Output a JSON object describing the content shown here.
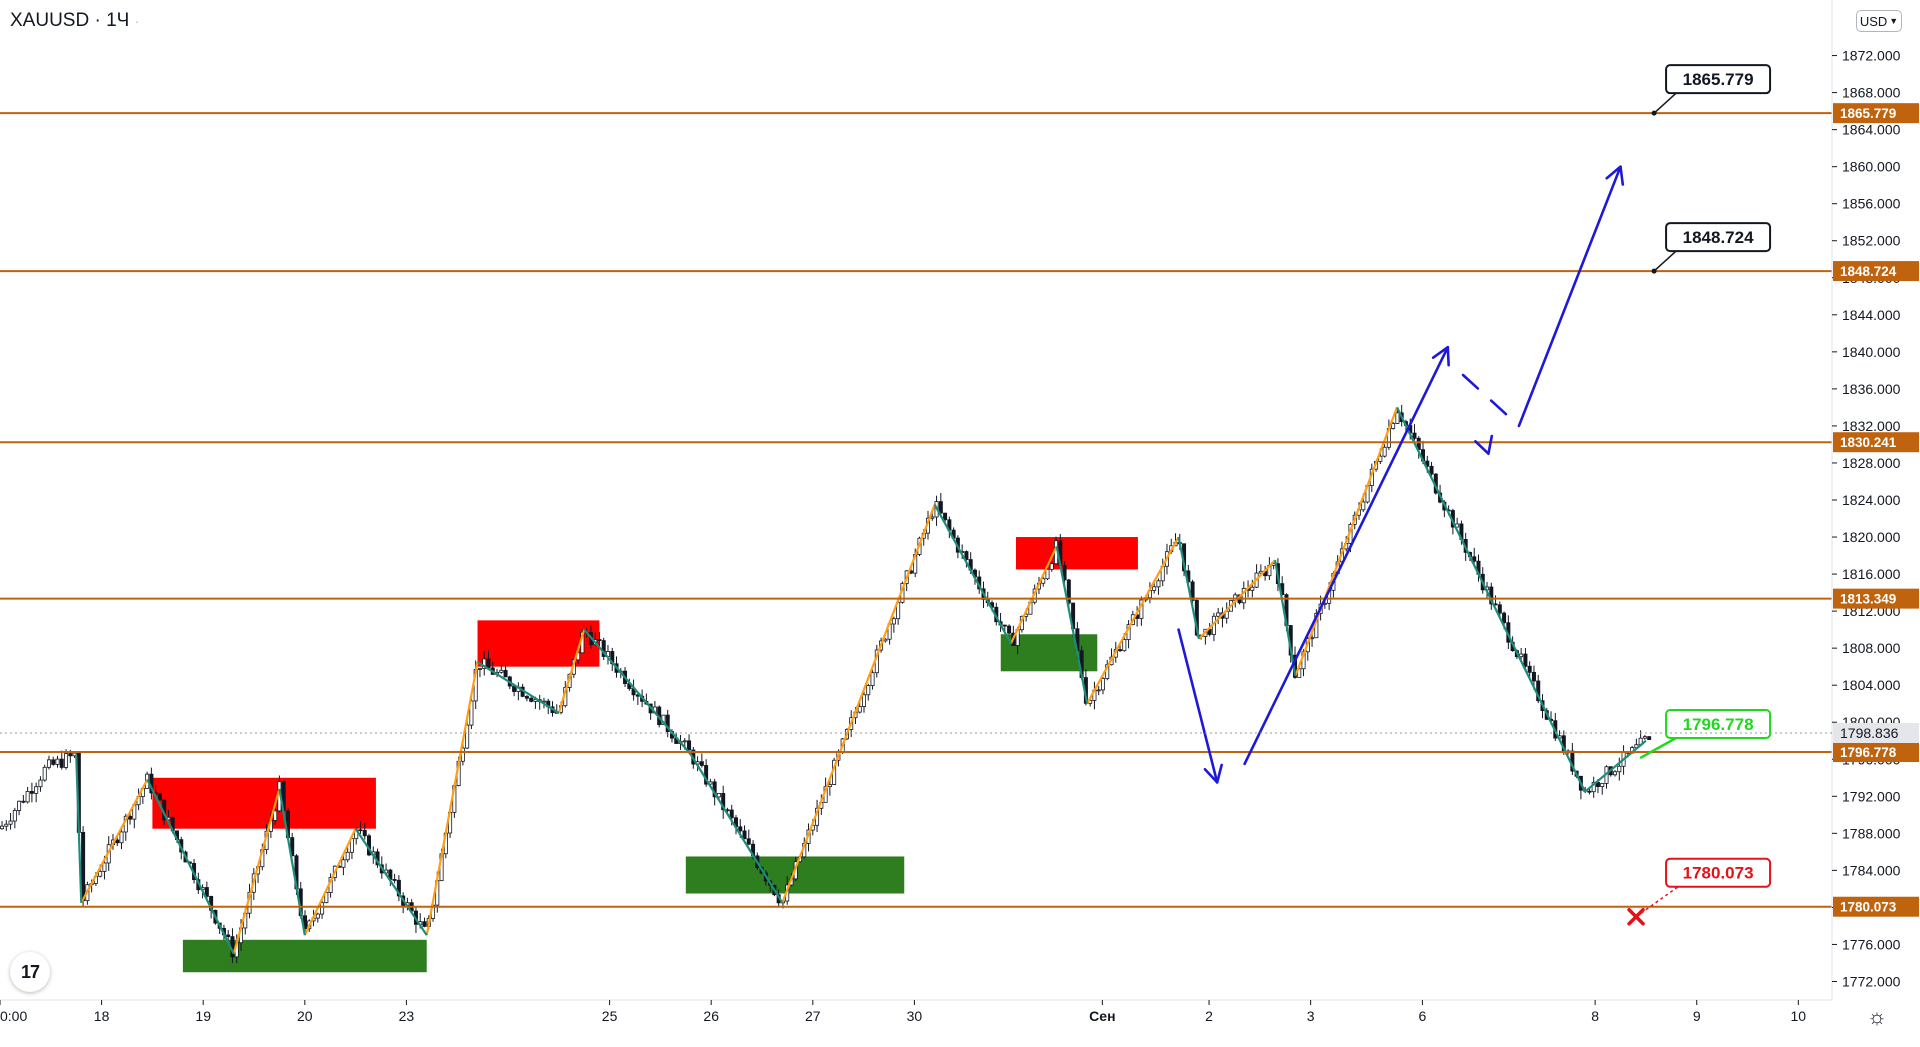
{
  "header": {
    "symbol": "XAUUSD",
    "interval": "1Ч",
    "currency": "USD"
  },
  "chart_data": {
    "type": "candlestick",
    "title": "XAUUSD · 1Ч",
    "y_axis": {
      "range": [
        1770,
        1878
      ],
      "ticks": [
        "1872.000",
        "1868.000",
        "1864.000",
        "1860.000",
        "1856.000",
        "1852.000",
        "1848.000",
        "1844.000",
        "1840.000",
        "1836.000",
        "1832.000",
        "1828.000",
        "1824.000",
        "1820.000",
        "1816.000",
        "1812.000",
        "1808.000",
        "1804.000",
        "1800.000",
        "1796.000",
        "1792.000",
        "1788.000",
        "1784.000",
        "1780.000",
        "1776.000",
        "1772.000"
      ]
    },
    "x_axis": {
      "ticks": [
        {
          "label": "0:00",
          "day": 0.0
        },
        {
          "label": "18",
          "day": 1.0
        },
        {
          "label": "19",
          "day": 2.0
        },
        {
          "label": "20",
          "day": 3.0
        },
        {
          "label": "23",
          "day": 4.0
        },
        {
          "label": "25",
          "day": 6.0
        },
        {
          "label": "26",
          "day": 7.0
        },
        {
          "label": "27",
          "day": 8.0
        },
        {
          "label": "30",
          "day": 9.0
        },
        {
          "label": "Сен",
          "day": 10.85
        },
        {
          "label": "2",
          "day": 11.9
        },
        {
          "label": "3",
          "day": 12.9
        },
        {
          "label": "6",
          "day": 14.0
        },
        {
          "label": "8",
          "day": 15.7
        },
        {
          "label": "9",
          "day": 16.7
        },
        {
          "label": "10",
          "day": 17.7
        }
      ]
    },
    "current_price": {
      "value": 1798.836,
      "label": "1798.836"
    },
    "levels": [
      {
        "value": 1865.779,
        "label": "1865.779",
        "color": "#c0630f"
      },
      {
        "value": 1848.724,
        "label": "1848.724",
        "color": "#c0630f"
      },
      {
        "value": 1830.241,
        "label": "1830.241",
        "color": "#c0630f"
      },
      {
        "value": 1813.349,
        "label": "1813.349",
        "color": "#c0630f"
      },
      {
        "value": 1796.778,
        "label": "1796.778",
        "color": "#c0630f"
      },
      {
        "value": 1780.073,
        "label": "1780.073",
        "color": "#c0630f"
      }
    ],
    "callouts": [
      {
        "value": 1865.779,
        "text": "1865.779",
        "border": "#131722",
        "text_color": "#131722",
        "marker": "dot"
      },
      {
        "value": 1848.724,
        "text": "1848.724",
        "border": "#131722",
        "text_color": "#131722",
        "marker": "dot"
      },
      {
        "value": 1796.778,
        "text": "1796.778",
        "border": "#1ed91e",
        "text_color": "#1ed91e",
        "marker": "arrow"
      },
      {
        "value": 1780.073,
        "text": "1780.073",
        "border": "#e3121a",
        "text_color": "#e3121a",
        "marker": "cross"
      }
    ],
    "supply_zones": [
      {
        "day_from": 1.5,
        "day_to": 3.7,
        "price_from": 1788.5,
        "price_to": 1794.0,
        "color": "#ff0000"
      },
      {
        "day_from": 4.7,
        "day_to": 5.9,
        "price_from": 1806.0,
        "price_to": 1811.0,
        "color": "#ff0000"
      },
      {
        "day_from": 10.0,
        "day_to": 11.2,
        "price_from": 1816.5,
        "price_to": 1820.0,
        "color": "#ff0000"
      }
    ],
    "demand_zones": [
      {
        "day_from": 1.8,
        "day_to": 4.2,
        "price_from": 1773.0,
        "price_to": 1776.5,
        "color": "#2e7d1f"
      },
      {
        "day_from": 6.75,
        "day_to": 8.9,
        "price_from": 1781.5,
        "price_to": 1785.5,
        "color": "#2e7d1f"
      },
      {
        "day_from": 9.85,
        "day_to": 10.8,
        "price_from": 1805.5,
        "price_to": 1809.5,
        "color": "#2e7d1f"
      }
    ],
    "bullish_zigzag": [
      [
        [
          0.8,
          1780.5
        ],
        [
          1.45,
          1793.8
        ]
      ],
      [
        [
          2.3,
          1775.0
        ],
        [
          2.75,
          1792.8
        ]
      ],
      [
        [
          3.0,
          1777.0
        ],
        [
          3.5,
          1788.5
        ]
      ],
      [
        [
          4.2,
          1777.0
        ],
        [
          4.7,
          1806.5
        ]
      ],
      [
        [
          5.5,
          1801.0
        ],
        [
          5.75,
          1810.0
        ]
      ],
      [
        [
          7.7,
          1780.5
        ],
        [
          9.2,
          1823.5
        ]
      ],
      [
        [
          9.95,
          1808.5
        ],
        [
          10.4,
          1819.0
        ]
      ],
      [
        [
          10.7,
          1802.0
        ],
        [
          11.6,
          1820.0
        ]
      ],
      [
        [
          11.8,
          1809.0
        ],
        [
          12.55,
          1817.5
        ]
      ],
      [
        [
          12.75,
          1805.0
        ],
        [
          13.75,
          1834.0
        ]
      ]
    ],
    "bearish_zigzag": [
      [
        [
          0.75,
          1796.5
        ],
        [
          0.8,
          1780.5
        ]
      ],
      [
        [
          1.45,
          1793.8
        ],
        [
          2.3,
          1775.0
        ]
      ],
      [
        [
          2.75,
          1792.8
        ],
        [
          3.0,
          1777.0
        ]
      ],
      [
        [
          3.5,
          1788.5
        ],
        [
          4.2,
          1777.0
        ]
      ],
      [
        [
          4.7,
          1806.5
        ],
        [
          5.5,
          1801.0
        ]
      ],
      [
        [
          5.75,
          1810.0
        ],
        [
          6.8,
          1796.5
        ]
      ],
      [
        [
          6.8,
          1796.5
        ],
        [
          7.7,
          1780.5
        ]
      ],
      [
        [
          9.2,
          1823.5
        ],
        [
          9.95,
          1808.5
        ]
      ],
      [
        [
          10.4,
          1819.0
        ],
        [
          10.7,
          1802.0
        ]
      ],
      [
        [
          11.6,
          1820.0
        ],
        [
          11.8,
          1809.0
        ]
      ],
      [
        [
          12.55,
          1817.5
        ],
        [
          12.75,
          1805.0
        ]
      ],
      [
        [
          13.75,
          1834.0
        ],
        [
          15.6,
          1792.5
        ]
      ],
      [
        [
          15.6,
          1792.5
        ],
        [
          16.2,
          1798.0
        ]
      ]
    ],
    "projection": [
      [
        11.6,
        1810.0
      ],
      [
        11.98,
        1793.5
      ],
      [
        12.25,
        1795.5
      ],
      [
        14.25,
        1840.5
      ],
      [
        14.4,
        1837.5
      ],
      [
        14.65,
        1829.0
      ],
      [
        14.95,
        1832.0
      ],
      [
        15.95,
        1860.0
      ]
    ],
    "candles_seed": 7
  }
}
